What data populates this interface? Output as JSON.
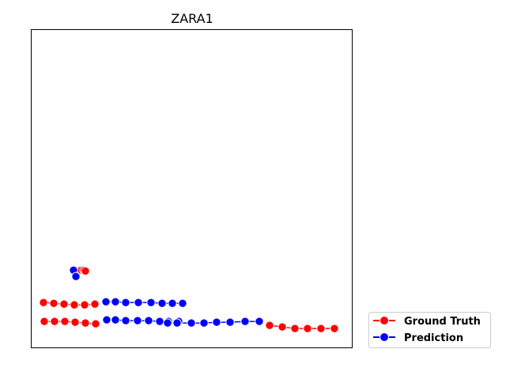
{
  "chart_data": {
    "type": "scatter",
    "title": "ZARA1",
    "xlabel": "",
    "ylabel": "",
    "ticks_visible": false,
    "grid": false,
    "legend_position": "lower-right-outside",
    "xlim": [
      0,
      405
    ],
    "ylim": [
      -403,
      0
    ],
    "series": [
      {
        "name": "Ground Truth",
        "color": "#ff0000",
        "marker": "circle",
        "tracks": [
          [
            [
              53,
              -305
            ],
            [
              55,
              -305
            ],
            [
              57,
              -305
            ],
            [
              59,
              -305
            ],
            [
              61,
              -305
            ],
            [
              63,
              -305
            ],
            [
              66,
              -305
            ],
            [
              68,
              -306
            ]
          ],
          [
            [
              15,
              -346
            ],
            [
              28,
              -347
            ],
            [
              41,
              -348
            ],
            [
              54,
              -349
            ],
            [
              67,
              -349
            ],
            [
              80,
              -348
            ]
          ],
          [
            [
              16,
              -370
            ],
            [
              29,
              -370
            ],
            [
              42,
              -370
            ],
            [
              55,
              -371
            ],
            [
              68,
              -372
            ],
            [
              81,
              -373
            ]
          ],
          [
            [
              301,
              -375
            ],
            [
              317,
              -377
            ],
            [
              333,
              -379
            ],
            [
              349,
              -379
            ],
            [
              366,
              -379
            ],
            [
              383,
              -379
            ]
          ]
        ]
      },
      {
        "name": "Prediction",
        "color": "#0000ff",
        "marker": "circle",
        "tracks": [
          [
            [
              53,
              -305
            ],
            [
              56,
              -313
            ]
          ],
          [
            [
              94,
              -345
            ],
            [
              106,
              -345
            ],
            [
              119,
              -346
            ],
            [
              135,
              -346
            ],
            [
              151,
              -346
            ],
            [
              165,
              -347
            ],
            [
              178,
              -347
            ],
            [
              191,
              -347
            ]
          ],
          [
            [
              95,
              -368
            ],
            [
              106,
              -368
            ],
            [
              119,
              -369
            ],
            [
              134,
              -369
            ],
            [
              148,
              -369
            ],
            [
              162,
              -370
            ],
            [
              173,
              -370
            ],
            [
              186,
              -370
            ],
            [
              172,
              -372
            ],
            [
              184,
              -372
            ],
            [
              202,
              -372
            ],
            [
              218,
              -372
            ],
            [
              234,
              -371
            ],
            [
              251,
              -371
            ],
            [
              270,
              -370
            ],
            [
              288,
              -370
            ]
          ]
        ]
      }
    ]
  }
}
